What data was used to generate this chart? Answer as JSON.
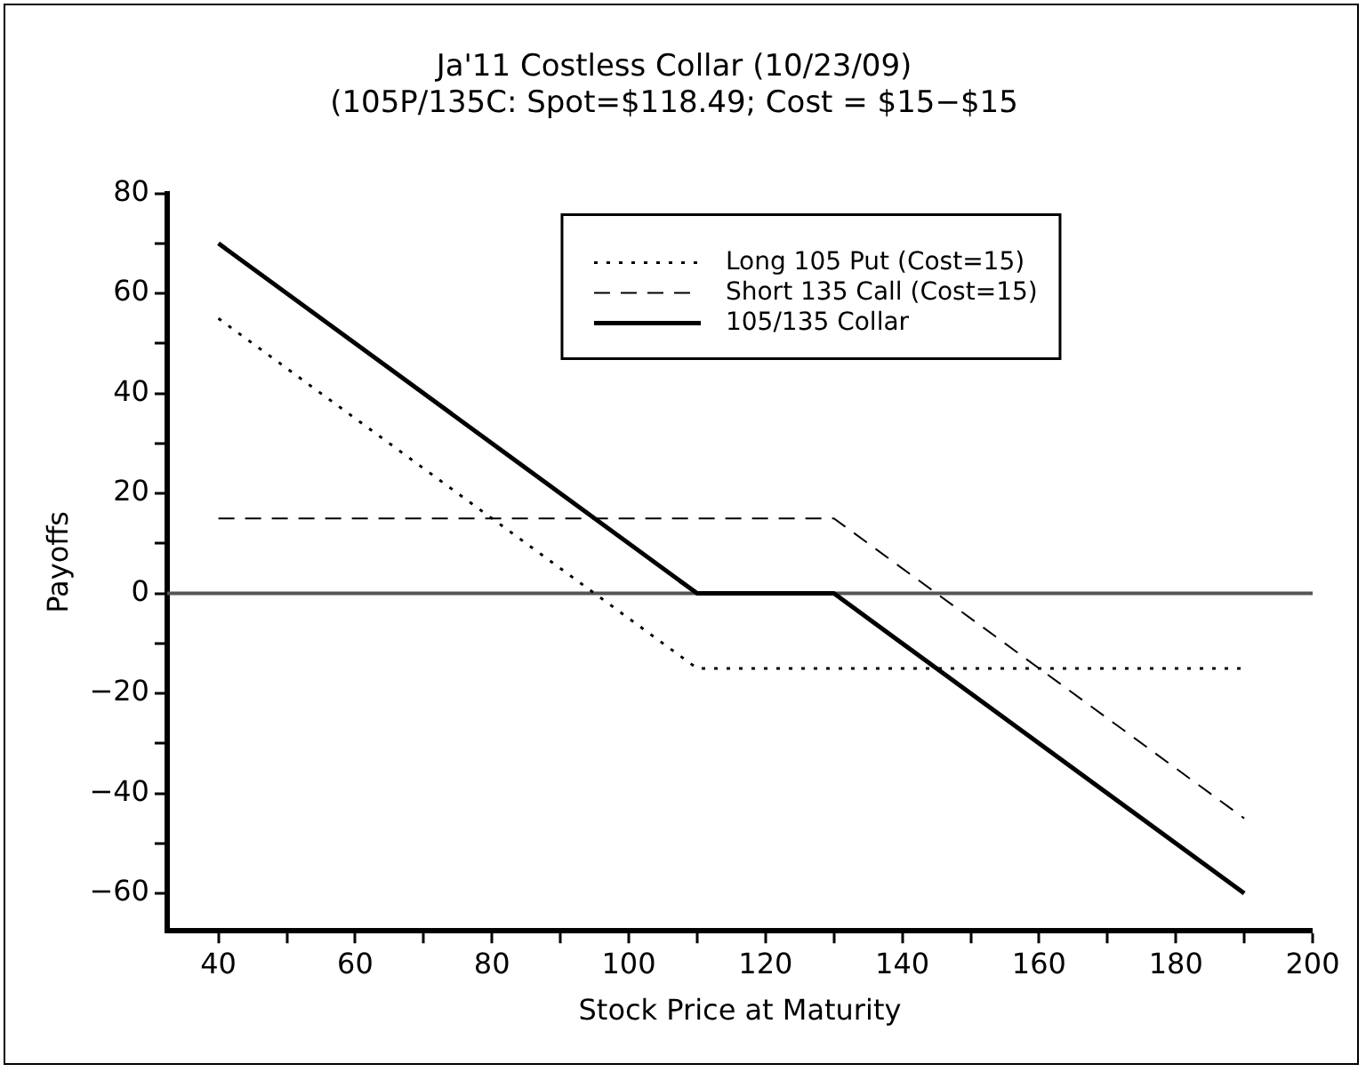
{
  "chart_data": {
    "type": "line",
    "title": "Ja'11 Costless Collar (10/23/09)",
    "subtitle": "(105P/135C: Spot=$118.49; Cost = $15−$15",
    "xlabel": "Stock Price at Maturity",
    "ylabel": "Payoffs",
    "xlim": [
      32.5,
      200
    ],
    "xticks": [
      40,
      {
        "value": 50,
        "label": null
      },
      60,
      {
        "value": 70,
        "label": null
      },
      80,
      {
        "value": 90,
        "label": null
      },
      100,
      {
        "value": 110,
        "label": null
      },
      120,
      {
        "value": 130,
        "label": null
      },
      140,
      {
        "value": 150,
        "label": null
      },
      160,
      {
        "value": 170,
        "label": null
      },
      180,
      {
        "value": 190,
        "label": null
      },
      200
    ],
    "ylim": [
      -67.5,
      80
    ],
    "yticks": [
      {
        "value": -60,
        "label": "−60"
      },
      {
        "value": -50,
        "label": null
      },
      {
        "value": -40,
        "label": "−40"
      },
      {
        "value": -30,
        "label": null
      },
      {
        "value": -20,
        "label": "−20"
      },
      {
        "value": -10,
        "label": null
      },
      0,
      {
        "value": 10,
        "label": null
      },
      20,
      {
        "value": 30,
        "label": null
      },
      40,
      {
        "value": 50,
        "label": null
      },
      60,
      {
        "value": 70,
        "label": null
      },
      80
    ],
    "series": [
      {
        "name": "Long 105 Put (Cost=15)",
        "color": "#000000",
        "line_style": "dotted",
        "x": [
          40,
          110,
          190
        ],
        "values": [
          55,
          -15,
          -15
        ]
      },
      {
        "name": "Short 135 Call (Cost=15)",
        "color": "#000000",
        "line_style": "dashed",
        "x": [
          40,
          130,
          190
        ],
        "values": [
          15,
          15,
          -45
        ]
      },
      {
        "name": "105/135 Collar",
        "color": "#000000",
        "line_style": "solid",
        "x": [
          40,
          110,
          130,
          190
        ],
        "values": [
          70,
          0,
          0,
          -60
        ]
      }
    ],
    "ref_lines": [
      {
        "axis": "y",
        "value": 0,
        "color": "#555555"
      }
    ],
    "grid": false,
    "legend": "top",
    "marker": "none"
  }
}
